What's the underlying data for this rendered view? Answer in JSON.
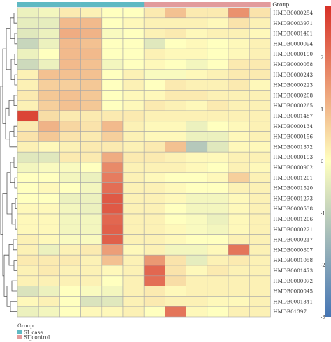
{
  "chart_data": {
    "type": "heatmap",
    "group_header": "Group",
    "legend": {
      "title": "Group",
      "items": [
        {
          "label": "SI_case",
          "color": "#5fb9c3"
        },
        {
          "label": "SI_control",
          "color": "#e29b9c"
        }
      ]
    },
    "columns": [
      {
        "group": "SI_case"
      },
      {
        "group": "SI_case"
      },
      {
        "group": "SI_case"
      },
      {
        "group": "SI_case"
      },
      {
        "group": "SI_case"
      },
      {
        "group": "SI_case"
      },
      {
        "group": "SI_control"
      },
      {
        "group": "SI_control"
      },
      {
        "group": "SI_control"
      },
      {
        "group": "SI_control"
      },
      {
        "group": "SI_control"
      },
      {
        "group": "SI_control"
      }
    ],
    "rows": [
      "HMDB0000254",
      "HMDB0003971",
      "HMDB0001401",
      "HMDB0000094",
      "HMDB0000190",
      "HMDB0000058",
      "HMDB0000243",
      "HMDB0000223",
      "HMDB0000208",
      "HMDB0000265",
      "HMDB0001487",
      "HMDB0000134",
      "HMDB0000156",
      "HMDB0001372",
      "HMDB0000193",
      "HMDB0000902",
      "HMDB0001201",
      "HMDB0001520",
      "HMDB0001273",
      "HMDB0000538",
      "HMDB0001206",
      "HMDB0000221",
      "HMDB0000217",
      "HMDB0000807",
      "HMDB0001058",
      "HMDB0001473",
      "HMDB0000072",
      "HMDB0000045",
      "HMDB0001341",
      "HMDB01397"
    ],
    "values": [
      [
        -0.3,
        -0.2,
        0.3,
        0.2,
        0.0,
        0.0,
        0.3,
        0.9,
        0.3,
        0.3,
        1.6,
        0.4
      ],
      [
        -0.4,
        -0.4,
        1.0,
        1.0,
        0.0,
        0.1,
        0.2,
        0.2,
        0.2,
        0.1,
        0.4,
        0.2
      ],
      [
        -0.5,
        -0.3,
        1.2,
        1.1,
        -0.1,
        0.0,
        0.2,
        0.3,
        0.1,
        0.2,
        0.2,
        0.1
      ],
      [
        -0.9,
        -0.3,
        1.0,
        0.9,
        0.0,
        0.0,
        -0.5,
        0.0,
        0.1,
        0.0,
        0.1,
        0.2
      ],
      [
        -0.3,
        0.0,
        1.0,
        1.0,
        0.0,
        0.0,
        0.2,
        0.1,
        0.1,
        0.0,
        0.1,
        0.2
      ],
      [
        -0.8,
        -0.3,
        1.0,
        0.9,
        -0.2,
        0.0,
        0.1,
        0.0,
        -0.2,
        0.0,
        0.3,
        0.3
      ],
      [
        0.2,
        0.9,
        0.9,
        0.9,
        0.0,
        0.2,
        -0.1,
        -0.1,
        0.1,
        0.2,
        0.3,
        0.3
      ],
      [
        0.2,
        0.7,
        0.7,
        0.8,
        0.0,
        0.2,
        0.0,
        0.3,
        0.2,
        0.2,
        0.3,
        0.1
      ],
      [
        0.3,
        0.8,
        0.9,
        0.8,
        0.0,
        0.1,
        0.1,
        0.3,
        0.3,
        0.2,
        0.2,
        0.2
      ],
      [
        0.2,
        0.7,
        0.9,
        0.8,
        0.0,
        0.1,
        0.3,
        0.2,
        0.1,
        0.3,
        0.2,
        0.2
      ],
      [
        2.7,
        0.5,
        0.3,
        0.3,
        0.3,
        0.3,
        0.2,
        0.2,
        0.2,
        0.2,
        0.2,
        0.2
      ],
      [
        0.3,
        1.1,
        0.6,
        0.4,
        1.0,
        0.2,
        0.1,
        0.1,
        -0.3,
        0.0,
        0.1,
        0.2
      ],
      [
        0.4,
        0.8,
        0.4,
        0.3,
        0.7,
        0.2,
        0.1,
        0.1,
        -0.3,
        -0.3,
        0.1,
        0.2
      ],
      [
        0.2,
        0.1,
        0.2,
        0.3,
        0.3,
        0.2,
        0.3,
        0.9,
        -1.2,
        -0.5,
        0.1,
        0.1
      ],
      [
        -0.5,
        -0.5,
        0.3,
        0.3,
        1.2,
        0.3,
        0.3,
        0.2,
        0.1,
        0.1,
        0.2,
        0.2
      ],
      [
        -0.2,
        -0.1,
        -0.1,
        0.0,
        1.7,
        0.2,
        0.2,
        0.2,
        0.1,
        0.0,
        0.2,
        0.1
      ],
      [
        0.0,
        0.0,
        -0.2,
        -0.3,
        1.9,
        0.2,
        0.1,
        0.0,
        0.0,
        0.1,
        0.7,
        0.2
      ],
      [
        0.0,
        0.1,
        0.0,
        -0.2,
        2.1,
        0.2,
        0.2,
        0.1,
        0.0,
        0.0,
        0.2,
        0.2
      ],
      [
        0.0,
        0.0,
        -0.3,
        -0.3,
        2.4,
        0.2,
        0.2,
        0.1,
        -0.2,
        -0.2,
        0.1,
        0.2
      ],
      [
        0.1,
        0.1,
        -0.2,
        -0.3,
        2.4,
        0.2,
        0.2,
        0.0,
        -0.2,
        -0.2,
        0.1,
        0.2
      ],
      [
        0.1,
        0.1,
        -0.2,
        -0.2,
        2.2,
        0.2,
        0.2,
        0.0,
        -0.1,
        -0.3,
        0.1,
        0.2
      ],
      [
        0.1,
        0.1,
        -0.2,
        -0.2,
        2.3,
        0.2,
        0.2,
        0.1,
        -0.1,
        -0.2,
        0.1,
        0.2
      ],
      [
        0.2,
        0.1,
        -0.1,
        -0.1,
        2.3,
        0.2,
        0.2,
        0.1,
        0.0,
        0.0,
        0.2,
        0.2
      ],
      [
        0.2,
        -0.3,
        0.2,
        0.3,
        1.4,
        0.1,
        0.2,
        -0.2,
        -0.2,
        0.1,
        2.0,
        0.2
      ],
      [
        0.3,
        0.3,
        0.3,
        0.2,
        0.9,
        0.2,
        1.5,
        0.4,
        -0.4,
        0.2,
        0.3,
        0.2
      ],
      [
        0.2,
        0.3,
        0.2,
        0.2,
        0.1,
        0.2,
        2.2,
        0.4,
        0.1,
        0.3,
        0.2,
        0.2
      ],
      [
        0.2,
        0.2,
        0.2,
        0.2,
        0.0,
        0.2,
        2.1,
        0.5,
        0.2,
        0.2,
        0.2,
        0.2
      ],
      [
        -0.6,
        -0.3,
        0.0,
        -0.1,
        -0.2,
        0.2,
        0.3,
        0.1,
        0.2,
        0.2,
        0.2,
        0.2
      ],
      [
        0.1,
        0.2,
        0.0,
        -0.6,
        -0.5,
        0.2,
        0.3,
        0.2,
        0.2,
        0.1,
        0.1,
        0.2
      ],
      [
        -0.3,
        -0.2,
        0.0,
        0.1,
        0.1,
        0.2,
        0.0,
        2.0,
        0.1,
        0.0,
        0.2,
        0.2
      ]
    ],
    "color_scale": {
      "min": -3,
      "max": 3,
      "ticks": [
        -3,
        -2,
        -1,
        0,
        1,
        2
      ],
      "colors": {
        "low": "#4575b4",
        "mid": "#ffffbf",
        "high": "#d73027"
      }
    },
    "cell_border_color": "#a8a8a8",
    "dendrogram_color": "#555555"
  }
}
